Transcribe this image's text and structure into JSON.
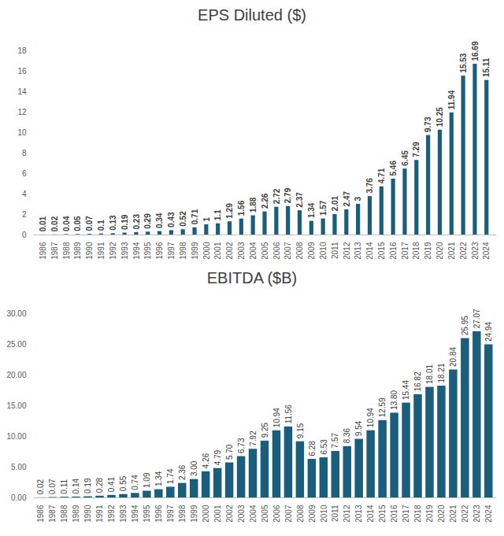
{
  "chart_data": [
    {
      "type": "bar",
      "title": "EPS Diluted ($)",
      "categories": [
        "1986",
        "1987",
        "1988",
        "1989",
        "1990",
        "1991",
        "1992",
        "1993",
        "1994",
        "1995",
        "1996",
        "1997",
        "1998",
        "1999",
        "2000",
        "2001",
        "2002",
        "2003",
        "2004",
        "2005",
        "2006",
        "2007",
        "2008",
        "2009",
        "2010",
        "2011",
        "2012",
        "2013",
        "2014",
        "2015",
        "2016",
        "2017",
        "2018",
        "2019",
        "2020",
        "2021",
        "2022",
        "2023",
        "2024"
      ],
      "values": [
        0.01,
        0.02,
        0.04,
        0.05,
        0.07,
        0.1,
        0.13,
        0.19,
        0.23,
        0.29,
        0.34,
        0.43,
        0.52,
        0.71,
        1,
        1.1,
        1.29,
        1.56,
        1.88,
        2.26,
        2.72,
        2.79,
        2.37,
        1.34,
        1.57,
        2.01,
        2.47,
        3,
        3.76,
        4.71,
        5.46,
        6.45,
        7.29,
        9.73,
        10.25,
        11.94,
        15.53,
        16.69,
        15.11
      ],
      "color": "#1b5e7b",
      "ylim": [
        0,
        18
      ],
      "yticks": [
        0,
        2,
        4,
        6,
        8,
        10,
        12,
        14,
        16,
        18
      ],
      "grid": false,
      "data_labels": true
    },
    {
      "type": "bar",
      "title": "EBITDA ($B)",
      "categories": [
        "1986",
        "1987",
        "1988",
        "1989",
        "1990",
        "1991",
        "1992",
        "1993",
        "1994",
        "1995",
        "1996",
        "1997",
        "1998",
        "1999",
        "2000",
        "2001",
        "2002",
        "2003",
        "2004",
        "2005",
        "2006",
        "2007",
        "2008",
        "2009",
        "2010",
        "2011",
        "2012",
        "2013",
        "2014",
        "2015",
        "2016",
        "2017",
        "2018",
        "2019",
        "2020",
        "2021",
        "2022",
        "2023",
        "2024"
      ],
      "values": [
        0.02,
        0.07,
        0.11,
        0.14,
        0.19,
        0.28,
        0.41,
        0.55,
        0.74,
        1.09,
        1.34,
        1.74,
        2.36,
        3.0,
        4.26,
        4.79,
        5.7,
        6.73,
        7.92,
        9.25,
        10.94,
        11.56,
        9.15,
        6.28,
        6.53,
        7.57,
        8.36,
        9.54,
        10.94,
        12.59,
        13.8,
        15.44,
        16.82,
        18.01,
        18.21,
        20.84,
        25.95,
        27.07,
        24.94
      ],
      "value_labels": [
        "0.02",
        "0.07",
        "0.11",
        "0.14",
        "0.19",
        "0.28",
        "0.41",
        "0.55",
        "0.74",
        "1.09",
        "1.34",
        "1.74",
        "2.36",
        "3.00",
        "4.26",
        "4.79",
        "5.70",
        "6.73",
        "7.92",
        "9.25",
        "10.94",
        "11.56",
        "9.15",
        "6.28",
        "6.53",
        "7.57",
        "8.36",
        "9.54",
        "10.94",
        "12.59",
        "13.80",
        "15.44",
        "16.82",
        "18.01",
        "18.21",
        "20.84",
        "25.95",
        "27.07",
        "24.94"
      ],
      "color": "#1b5e7b",
      "ylim": [
        0,
        30
      ],
      "yticks": [
        {
          "value": 0,
          "label": "0.00"
        },
        {
          "value": 5,
          "label": "5.00"
        },
        {
          "value": 10,
          "label": "10.00"
        },
        {
          "value": 15,
          "label": "15.00"
        },
        {
          "value": 20,
          "label": "20.00"
        },
        {
          "value": 25,
          "label": "25.00"
        },
        {
          "value": 30,
          "label": "30.00"
        }
      ],
      "grid": false,
      "data_labels": true
    }
  ]
}
